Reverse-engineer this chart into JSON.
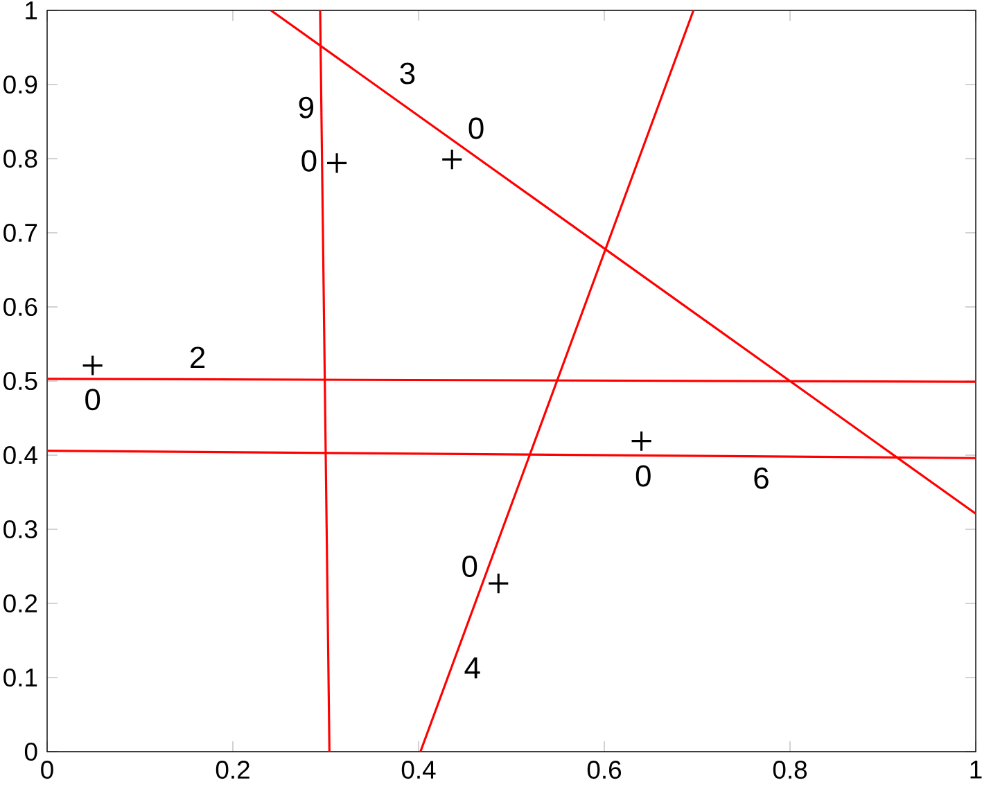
{
  "chart_data": {
    "type": "line",
    "xlim": [
      0,
      1
    ],
    "ylim": [
      0,
      1
    ],
    "xticks": [
      0,
      0.2,
      0.4,
      0.6,
      0.8,
      1
    ],
    "yticks": [
      0,
      0.1,
      0.2,
      0.3,
      0.4,
      0.5,
      0.6,
      0.7,
      0.8,
      0.9,
      1
    ],
    "series": [
      {
        "color": "#ff0000",
        "x": [
          0.294,
          0.304
        ],
        "values": [
          1,
          0
        ]
      },
      {
        "color": "#ff0000",
        "x": [
          0.241,
          1
        ],
        "values": [
          1,
          0.321
        ]
      },
      {
        "color": "#ff0000",
        "x": [
          0.402,
          0.696
        ],
        "values": [
          0,
          1
        ]
      },
      {
        "color": "#ff0000",
        "x": [
          0,
          1
        ],
        "values": [
          0.503,
          0.499
        ]
      },
      {
        "color": "#ff0000",
        "x": [
          0,
          1
        ],
        "values": [
          0.406,
          0.396
        ]
      },
      {
        "type": "scatter",
        "color": "#000000",
        "marker": "cross",
        "x": [
          0.049,
          0.312,
          0.436,
          0.64,
          0.486
        ],
        "values": [
          0.521,
          0.794,
          0.799,
          0.419,
          0.227
        ]
      }
    ],
    "annotations": [
      "0",
      "2",
      "9",
      "0",
      "3",
      "0",
      "0",
      "6",
      "0",
      "4"
    ]
  }
}
